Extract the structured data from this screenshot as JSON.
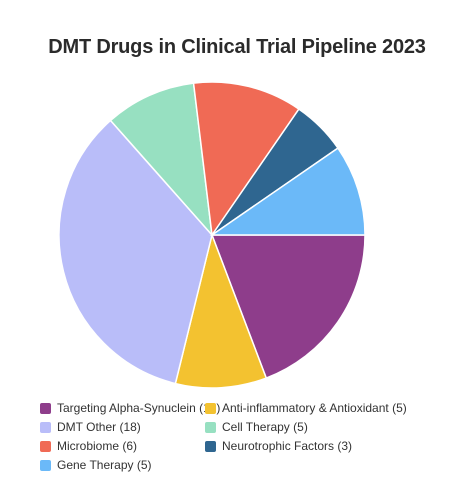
{
  "chart_data": {
    "type": "pie",
    "title": "DMT Drugs in Clinical Trial Pipeline 2023",
    "slices": [
      {
        "label": "Targeting Alpha-Synuclein (10)",
        "value": 10,
        "color": "#8e3d8b"
      },
      {
        "label": "Anti-inflammatory & Antioxidant (5)",
        "value": 5,
        "color": "#f3c230"
      },
      {
        "label": "DMT Other (18)",
        "value": 18,
        "color": "#b9bdf9"
      },
      {
        "label": "Cell Therapy (5)",
        "value": 5,
        "color": "#97e0c1"
      },
      {
        "label": "Microbiome (6)",
        "value": 6,
        "color": "#f06a55"
      },
      {
        "label": "Neurotrophic Factors (3)",
        "value": 3,
        "color": "#2f6690"
      },
      {
        "label": "Gene Therapy (5)",
        "value": 5,
        "color": "#6bb9f8"
      }
    ],
    "legend_position": "bottom"
  }
}
